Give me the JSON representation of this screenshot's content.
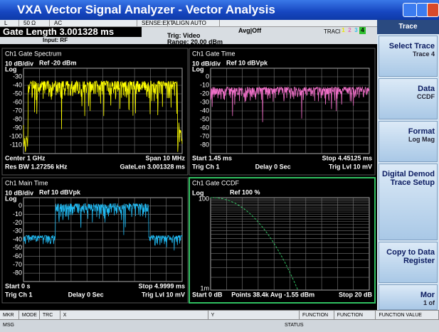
{
  "window": {
    "title": "VXA Vector Signal Analyzer - Vector Analysis"
  },
  "status": {
    "indicators": [
      "L",
      "50 Ω",
      "AC",
      "SENSE:EXT",
      "ALIGN AUTO"
    ],
    "gate_length": "Gate Length  3.001328 ms",
    "input": "Input: RF",
    "trig": "Trig: Video",
    "range": "Range: 20.00 dBm",
    "avg": "Avg|Off",
    "trace_label": "TRACE",
    "trace_numbers": [
      "1",
      "2",
      "3",
      "4"
    ]
  },
  "panes": [
    {
      "title": "Ch1 Gate Spectrum",
      "scale": "10 dB/div",
      "log": "Log",
      "ref": "Ref -20 dBm",
      "yticks": [
        "-30",
        "-40",
        "-50",
        "-60",
        "-70",
        "-80",
        "-90",
        "-100",
        "-110"
      ],
      "footer": [
        [
          "Center 1 GHz",
          "Span 10 MHz"
        ],
        [
          "Res BW 1.27256 kHz",
          "GateLen 3.001328 ms"
        ]
      ]
    },
    {
      "title": "Ch1 Gate Time",
      "scale": "10 dB/div",
      "log": "Log",
      "ref": "Ref 10 dBVpk",
      "yticks": [
        "0",
        "-10",
        "-20",
        "-30",
        "-40",
        "-50",
        "-60",
        "-70",
        "-80"
      ],
      "footer": [
        [
          "Start 1.45 ms",
          "Stop 4.45125 ms"
        ],
        [
          "Trig Ch 1",
          "Delay 0  Sec",
          "Trig Lvl 10 mV"
        ]
      ]
    },
    {
      "title": "Ch1 Main Time",
      "scale": "10 dB/div",
      "log": "Log",
      "ref": "Ref 10 dBVpk",
      "yticks": [
        "0",
        "-10",
        "-20",
        "-30",
        "-40",
        "-50",
        "-60",
        "-70",
        "-80"
      ],
      "footer": [
        [
          "Start 0  s",
          "Stop 4.9999 ms"
        ],
        [
          "Trig Ch 1",
          "Delay 0  Sec",
          "Trig Lvl 10 mV"
        ]
      ]
    },
    {
      "title": "Ch1 Gate CCDF",
      "scale": "Log",
      "log": "",
      "ref": "Ref 100  %",
      "yticks": [
        "100",
        "1m"
      ],
      "footer": [
        [
          "Start 0 dB",
          "Points 38.4k  Avg -1.55 dBm",
          "Stop 20 dB"
        ]
      ]
    }
  ],
  "marker_bar": [
    "MKR",
    "MODE",
    "TRC",
    "X",
    "Y",
    "FUNCTION",
    "FUNCTION WIDTH",
    "FUNCTION VALUE"
  ],
  "message_bar": [
    "MSG",
    "STATUS"
  ],
  "softkeys": {
    "header": "Trace",
    "keys": [
      [
        "Select Trace",
        "Trace 4"
      ],
      [
        "Data",
        "CCDF"
      ],
      [
        "Format",
        "Log Mag"
      ],
      [
        "Digital Demod Trace Setup"
      ],
      [
        "Copy to Data Register"
      ],
      [
        "Mor",
        "1 of"
      ]
    ]
  }
}
